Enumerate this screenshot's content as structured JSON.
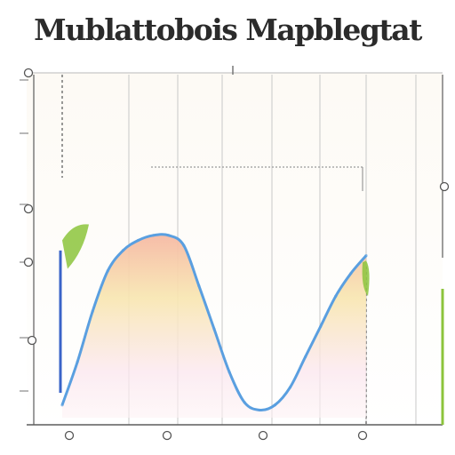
{
  "chart_data": {
    "type": "area",
    "title": "Mublattobois Mapblegtat",
    "xlabel": "",
    "ylabel": "",
    "x": [
      0.0,
      0.05,
      0.1,
      0.15,
      0.2,
      0.25,
      0.3,
      0.35,
      0.4,
      0.45,
      0.5,
      0.55,
      0.6,
      0.65,
      0.7,
      0.75,
      0.8,
      0.85,
      0.9,
      0.95,
      1.0
    ],
    "xlim": [
      0,
      1
    ],
    "ylim": [
      0,
      1
    ],
    "series": [
      {
        "values": [
          0.05,
          0.22,
          0.42,
          0.58,
          0.66,
          0.7,
          0.72,
          0.72,
          0.68,
          0.52,
          0.35,
          0.18,
          0.06,
          0.03,
          0.05,
          0.12,
          0.24,
          0.36,
          0.48,
          0.57,
          0.64
        ]
      }
    ],
    "grid": true,
    "colors": {
      "outline": "#5a9fe0",
      "fill_top": "#f6b9a4",
      "fill_mid": "#f8e6b0",
      "fill_low": "#fbe6ee",
      "accent": "#8cc43c",
      "grid": "#c8c8c8",
      "axis": "#5c5c5c"
    }
  }
}
